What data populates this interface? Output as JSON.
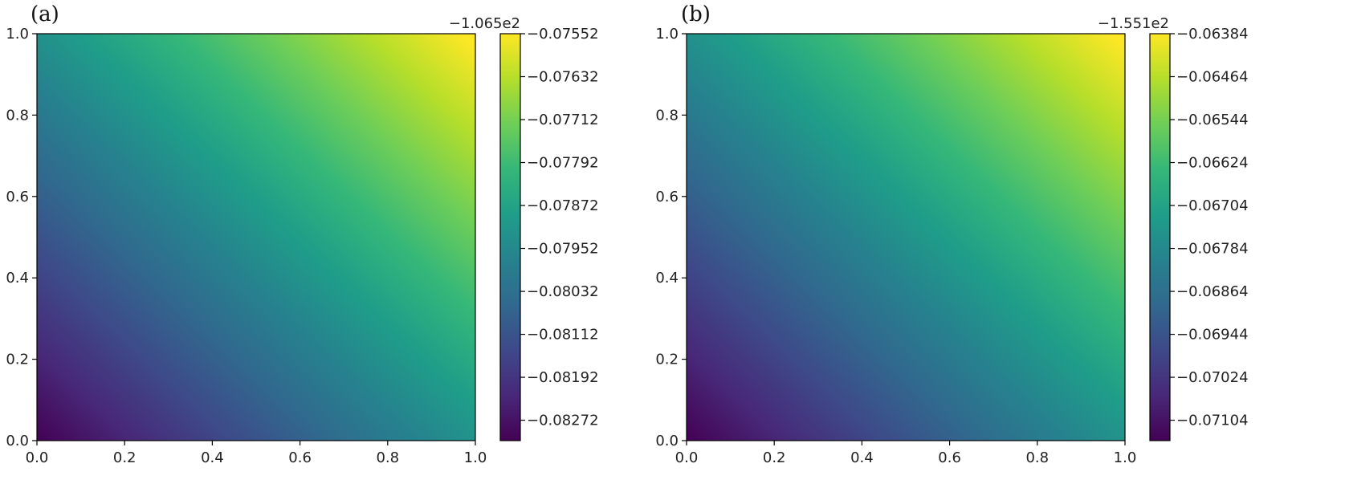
{
  "chart_data": [
    {
      "type": "heatmap",
      "panel_label": "(a)",
      "xlim": [
        0.0,
        1.0
      ],
      "ylim": [
        0.0,
        1.0
      ],
      "x_ticks": [
        "0.0",
        "0.2",
        "0.4",
        "0.6",
        "0.8",
        "1.0"
      ],
      "y_ticks": [
        "0.0",
        "0.2",
        "0.4",
        "0.6",
        "0.8",
        "1.0"
      ],
      "colorbar": {
        "offset_label": "−1.065e2",
        "range": [
          -0.0831,
          -0.07552
        ],
        "ticks": [
          "−0.07552",
          "−0.07632",
          "−0.07712",
          "−0.07792",
          "−0.07872",
          "−0.07952",
          "−0.08032",
          "−0.08112",
          "−0.08192",
          "−0.08272"
        ],
        "tick_values": [
          -0.07552,
          -0.07632,
          -0.07712,
          -0.07792,
          -0.07872,
          -0.07952,
          -0.08032,
          -0.08112,
          -0.08192,
          -0.08272
        ]
      },
      "field": {
        "min_at": "bottom-left",
        "max_at": "top-right",
        "y_weight": 1.1
      }
    },
    {
      "type": "heatmap",
      "panel_label": "(b)",
      "xlim": [
        0.0,
        1.0
      ],
      "ylim": [
        0.0,
        1.0
      ],
      "x_ticks": [
        "0.0",
        "0.2",
        "0.4",
        "0.6",
        "0.8",
        "1.0"
      ],
      "y_ticks": [
        "0.0",
        "0.2",
        "0.4",
        "0.6",
        "0.8",
        "1.0"
      ],
      "colorbar": {
        "offset_label": "−1.551e2",
        "range": [
          -0.07142,
          -0.06384
        ],
        "ticks": [
          "−0.06384",
          "−0.06464",
          "−0.06544",
          "−0.06624",
          "−0.06704",
          "−0.06784",
          "−0.06864",
          "−0.06944",
          "−0.07024",
          "−0.07104"
        ],
        "tick_values": [
          -0.06384,
          -0.06464,
          -0.06544,
          -0.06624,
          -0.06704,
          -0.06784,
          -0.06864,
          -0.06944,
          -0.07024,
          -0.07104
        ]
      },
      "field": {
        "min_at": "bottom-left",
        "max_at": "top-right",
        "y_weight": 1.1
      }
    }
  ],
  "colormap": {
    "name": "viridis",
    "stops": [
      "#440154",
      "#482878",
      "#3e4989",
      "#31688e",
      "#26828e",
      "#1f9e89",
      "#35b779",
      "#6ece58",
      "#b5de2b",
      "#fde725"
    ]
  }
}
